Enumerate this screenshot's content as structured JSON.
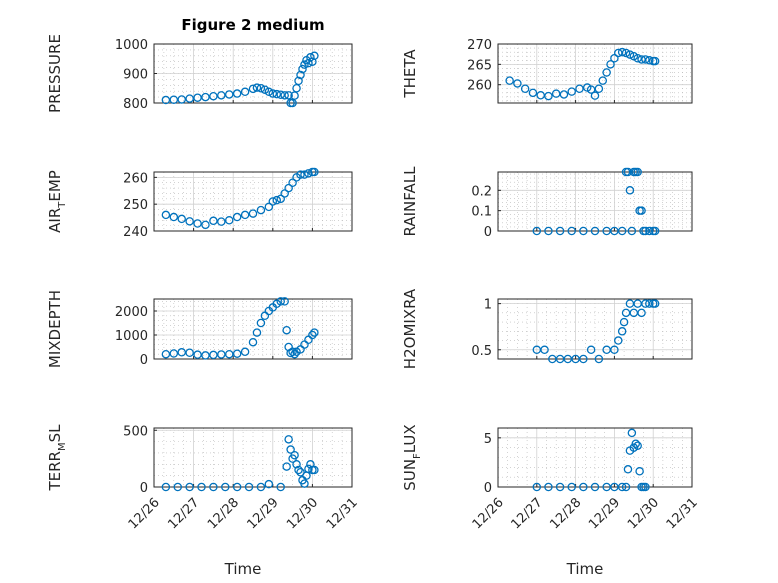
{
  "figure_title": "Figure 2 medium",
  "chart_data": [
    {
      "type": "scatter",
      "panel": "pressure",
      "title": "Figure 2 medium",
      "ylabel": "PRESSURE",
      "ylim": [
        800,
        1000
      ],
      "yticks": [
        800,
        900,
        1000
      ],
      "xlim": [
        0,
        5
      ],
      "x": [
        0.3,
        0.5,
        0.7,
        0.9,
        1.1,
        1.3,
        1.5,
        1.7,
        1.9,
        2.1,
        2.3,
        2.5,
        2.6,
        2.7,
        2.8,
        2.9,
        3.0,
        3.1,
        3.2,
        3.3,
        3.4,
        3.45,
        3.5,
        3.55,
        3.6,
        3.65,
        3.7,
        3.75,
        3.8,
        3.85,
        3.9,
        3.95,
        4.0,
        4.05
      ],
      "y": [
        810,
        811,
        812,
        815,
        818,
        820,
        823,
        826,
        829,
        832,
        838,
        848,
        852,
        850,
        845,
        838,
        832,
        830,
        828,
        826,
        826,
        800,
        800,
        825,
        850,
        875,
        895,
        915,
        930,
        945,
        935,
        955,
        940,
        960
      ]
    },
    {
      "type": "scatter",
      "panel": "theta",
      "ylabel": "THETA",
      "ylim": [
        255.5,
        270
      ],
      "yticks": [
        260,
        265,
        270
      ],
      "xlim": [
        0,
        5
      ],
      "x": [
        0.3,
        0.5,
        0.7,
        0.9,
        1.1,
        1.3,
        1.5,
        1.7,
        1.9,
        2.1,
        2.3,
        2.4,
        2.5,
        2.6,
        2.7,
        2.8,
        2.9,
        3.0,
        3.1,
        3.2,
        3.3,
        3.4,
        3.5,
        3.6,
        3.7,
        3.8,
        3.9,
        4.0,
        4.05
      ],
      "y": [
        261,
        260.3,
        259,
        258,
        257.4,
        257.2,
        257.8,
        257.6,
        258.3,
        259,
        259.3,
        258.8,
        257.3,
        259,
        261,
        263,
        265,
        266.5,
        267.8,
        268,
        267.8,
        267.4,
        267,
        266.5,
        266.2,
        266.2,
        266,
        265.8,
        265.8
      ]
    },
    {
      "type": "scatter",
      "panel": "air_temp",
      "ylabel_main": "AIR",
      "ylabel_sub": "T",
      "ylabel_tail": "EMP",
      "ylim": [
        240,
        262
      ],
      "yticks": [
        240,
        250,
        260
      ],
      "xlim": [
        0,
        5
      ],
      "x": [
        0.3,
        0.5,
        0.7,
        0.9,
        1.1,
        1.3,
        1.5,
        1.7,
        1.9,
        2.1,
        2.3,
        2.5,
        2.7,
        2.9,
        3.0,
        3.1,
        3.2,
        3.3,
        3.4,
        3.5,
        3.6,
        3.7,
        3.8,
        3.9,
        4.0,
        4.05
      ],
      "y": [
        246,
        245.2,
        244.5,
        243.6,
        242.8,
        242.3,
        243.8,
        243.5,
        244,
        245.2,
        246,
        246.5,
        247.8,
        249,
        251,
        251.5,
        252,
        254,
        256,
        258,
        260,
        261,
        261,
        261.5,
        262,
        262
      ]
    },
    {
      "type": "scatter",
      "panel": "rainfall",
      "ylabel": "RAINFALL",
      "ylim": [
        0,
        0.29
      ],
      "yticks": [
        0,
        0.1,
        0.2
      ],
      "ytick_labels": [
        "0",
        "0.1",
        "0.2"
      ],
      "xlim": [
        0,
        5
      ],
      "x": [
        1.0,
        1.3,
        1.6,
        1.9,
        2.2,
        2.5,
        2.8,
        3.0,
        3.2,
        3.3,
        3.35,
        3.4,
        3.45,
        3.5,
        3.55,
        3.6,
        3.65,
        3.7,
        3.75,
        3.8,
        3.9,
        4.0,
        4.05
      ],
      "y": [
        0,
        0,
        0,
        0,
        0,
        0,
        0,
        0,
        0,
        0.29,
        0.29,
        0.2,
        0,
        0.29,
        0.29,
        0.29,
        0.1,
        0.1,
        0,
        0,
        0,
        0,
        0
      ]
    },
    {
      "type": "scatter",
      "panel": "mixdepth",
      "ylabel": "MIXDEPTH",
      "ylim": [
        0,
        2500
      ],
      "yticks": [
        0,
        1000,
        2000
      ],
      "xlim": [
        0,
        5
      ],
      "x": [
        0.3,
        0.5,
        0.7,
        0.9,
        1.1,
        1.3,
        1.5,
        1.7,
        1.9,
        2.1,
        2.3,
        2.5,
        2.6,
        2.7,
        2.8,
        2.9,
        3.0,
        3.1,
        3.2,
        3.3,
        3.35,
        3.4,
        3.45,
        3.5,
        3.55,
        3.6,
        3.7,
        3.8,
        3.9,
        4.0,
        4.05
      ],
      "y": [
        200,
        230,
        280,
        260,
        180,
        150,
        170,
        190,
        200,
        220,
        300,
        700,
        1100,
        1500,
        1800,
        2000,
        2150,
        2300,
        2400,
        2400,
        1200,
        500,
        250,
        300,
        200,
        300,
        400,
        600,
        800,
        1000,
        1100
      ]
    },
    {
      "type": "scatter",
      "panel": "h2omixra",
      "ylabel": "H2OMIXRA",
      "ylim": [
        0.4,
        1.05
      ],
      "yticks": [
        0.5,
        1
      ],
      "ytick_labels": [
        "0.5",
        "1"
      ],
      "xlim": [
        0,
        5
      ],
      "x": [
        1.0,
        1.2,
        1.4,
        1.6,
        1.8,
        2.0,
        2.2,
        2.4,
        2.6,
        2.8,
        3.0,
        3.1,
        3.2,
        3.25,
        3.3,
        3.4,
        3.5,
        3.6,
        3.7,
        3.8,
        3.9,
        4.0,
        4.05
      ],
      "y": [
        0.5,
        0.5,
        0.4,
        0.4,
        0.4,
        0.4,
        0.4,
        0.5,
        0.4,
        0.5,
        0.5,
        0.6,
        0.7,
        0.8,
        0.9,
        1.0,
        0.9,
        1.0,
        0.9,
        1.0,
        1.0,
        1.0,
        1.0
      ]
    },
    {
      "type": "scatter",
      "panel": "terr_msl",
      "ylabel_main": "TERR",
      "ylabel_sub": "M",
      "ylabel_tail": "SL",
      "ylim": [
        0,
        520
      ],
      "yticks": [
        0,
        500
      ],
      "xlim": [
        0,
        5
      ],
      "x": [
        0.3,
        0.6,
        0.9,
        1.2,
        1.5,
        1.8,
        2.1,
        2.4,
        2.7,
        2.9,
        3.2,
        3.35,
        3.4,
        3.45,
        3.5,
        3.55,
        3.6,
        3.65,
        3.7,
        3.75,
        3.8,
        3.85,
        3.9,
        3.95,
        4.0,
        4.05
      ],
      "y": [
        0,
        0,
        0,
        0,
        0,
        0,
        0,
        0,
        0,
        25,
        0,
        180,
        420,
        330,
        250,
        280,
        200,
        150,
        130,
        60,
        30,
        100,
        160,
        200,
        150,
        150
      ]
    },
    {
      "type": "scatter",
      "panel": "sun_flux",
      "ylabel_main": "SUN",
      "ylabel_sub": "F",
      "ylabel_tail": "LUX",
      "ylim": [
        0,
        6
      ],
      "yticks": [
        0,
        5
      ],
      "xlim": [
        0,
        5
      ],
      "x": [
        1.0,
        1.3,
        1.6,
        1.9,
        2.2,
        2.5,
        2.8,
        3.0,
        3.2,
        3.3,
        3.35,
        3.4,
        3.45,
        3.5,
        3.55,
        3.6,
        3.65,
        3.7,
        3.75,
        3.8
      ],
      "y": [
        0,
        0,
        0,
        0,
        0,
        0,
        0,
        0,
        0,
        0,
        1.8,
        3.7,
        5.5,
        4.0,
        4.4,
        4.2,
        1.6,
        0,
        0,
        0
      ]
    }
  ],
  "x_ticks": {
    "positions": [
      0,
      1,
      2,
      3,
      4,
      5
    ],
    "labels": [
      "12/26",
      "12/27",
      "12/28",
      "12/29",
      "12/30",
      "12/31"
    ]
  },
  "xlabel": "Time"
}
